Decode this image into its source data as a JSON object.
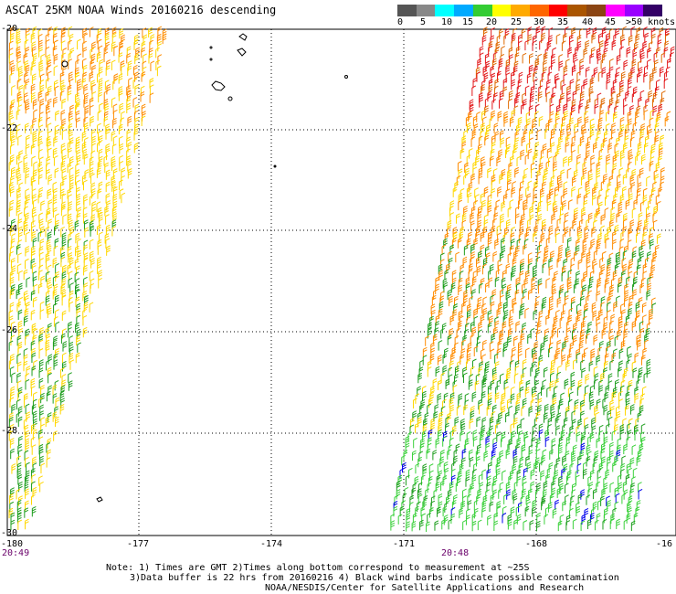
{
  "title": "ASCAT 25KM NOAA Winds 20160216 descending",
  "colorbar": {
    "colors": [
      "#555555",
      "#888888",
      "#00ffff",
      "#00aaff",
      "#33cc33",
      "#ffff00",
      "#ffaa00",
      "#ff6600",
      "#ff0000",
      "#aa5500",
      "#8b4513",
      "#ff00ff",
      "#9900ff",
      "#330066"
    ],
    "labels": [
      "0",
      "5",
      "10",
      "15",
      "20",
      "25",
      "30",
      "35",
      "40",
      "45",
      ">50 knots"
    ]
  },
  "axes": {
    "lat_labels": [
      "-20",
      "-22",
      "-24",
      "-26",
      "-28",
      "-30"
    ],
    "lon_labels": [
      "-180",
      "-177",
      "-174",
      "-171",
      "-168",
      "-16"
    ]
  },
  "times": {
    "left": "20:49",
    "right": "20:48"
  },
  "notes": {
    "line1": "Note: 1) Times are GMT 2)Times along bottom correspond to measurement at ~25S",
    "line2": "3)Data buffer is 22 hrs from 20160216 4) Black wind barbs indicate possible contamination",
    "line3": "NOAA/NESDIS/Center for Satellite Applications and Research"
  },
  "wind_swaths": [
    {
      "name": "west-swath",
      "speed_bands": [
        "orange",
        "yellow",
        "green"
      ]
    },
    {
      "name": "east-swath",
      "speed_bands": [
        "red",
        "orange",
        "yellow",
        "green",
        "blue"
      ]
    }
  ]
}
